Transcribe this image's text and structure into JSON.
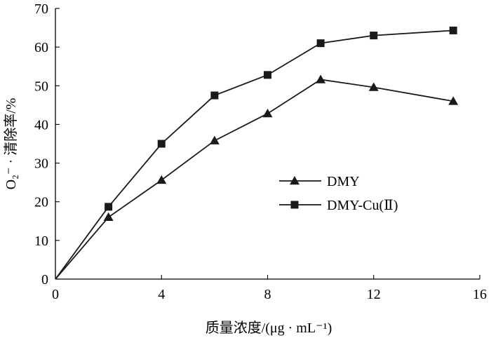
{
  "chart_data": {
    "type": "line",
    "title": "",
    "xlabel": "质量浓度/(μg · mL⁻¹)",
    "ylabel": "O₂⁻ · 清除率/%",
    "xlim": [
      0,
      16
    ],
    "ylim": [
      0,
      70
    ],
    "xticks": [
      "0",
      "4",
      "8",
      "12",
      "16"
    ],
    "yticks": [
      "0",
      "10",
      "20",
      "30",
      "40",
      "50",
      "60",
      "70"
    ],
    "grid": false,
    "legend_position": "center-right",
    "series": [
      {
        "name": "DMY",
        "marker": "triangle",
        "color": "#1a1a1a",
        "x": [
          0,
          2,
          4,
          6,
          8,
          10,
          12,
          15
        ],
        "y": [
          0,
          16,
          25.6,
          35.8,
          42.8,
          51.6,
          49.6,
          46
        ]
      },
      {
        "name": "DMY-Cu(Ⅱ)",
        "marker": "square",
        "color": "#1a1a1a",
        "x": [
          0,
          2,
          4,
          6,
          8,
          10,
          12,
          15
        ],
        "y": [
          0,
          18.7,
          35,
          47.5,
          52.8,
          61,
          63,
          64.3
        ]
      }
    ]
  }
}
